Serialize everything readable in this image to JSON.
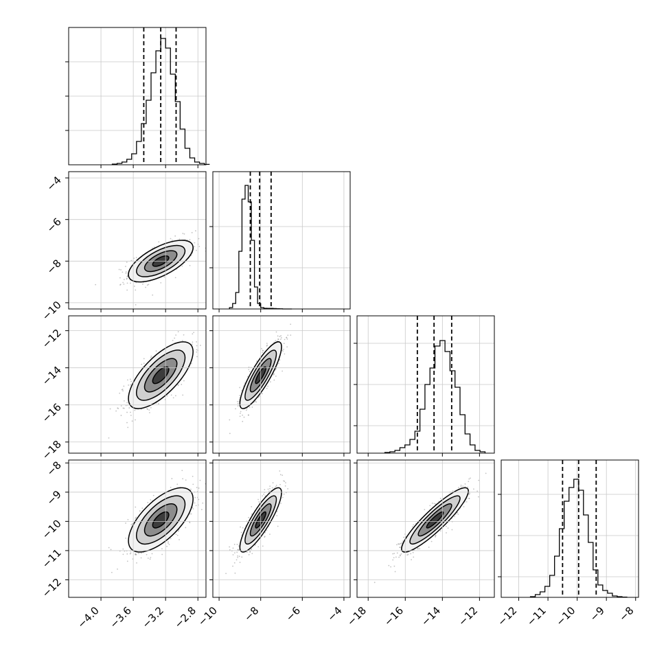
{
  "chart_data": {
    "type": "corner",
    "grid": true,
    "quantiles_shown": [
      0.16,
      0.5,
      0.84
    ],
    "parameters": [
      {
        "range": [
          -4.4,
          -2.7
        ],
        "ticks": [
          -4.0,
          -3.6,
          -3.2,
          -2.8
        ],
        "tick_labels": [
          "−4.0",
          "−3.6",
          "−3.2",
          "−2.8"
        ],
        "hist_y_ticks": [
          0.25,
          0.5,
          0.75
        ],
        "quantiles": [
          -3.47,
          -3.26,
          -3.07
        ],
        "histogram": [
          0.005,
          0.01,
          0.02,
          0.04,
          0.08,
          0.17,
          0.3,
          0.47,
          0.67,
          0.83,
          0.92,
          0.85,
          0.66,
          0.46,
          0.26,
          0.12,
          0.05,
          0.02,
          0.01,
          0.003
        ],
        "center": -3.26,
        "sigma": 0.2
      },
      {
        "range": [
          -10.3,
          -3.7
        ],
        "ticks": [
          -10,
          -8,
          -6,
          -4
        ],
        "tick_labels": [
          "−10",
          "−8",
          "−6",
          "−4"
        ],
        "hist_y_ticks": [
          0.3,
          0.6
        ],
        "quantiles": [
          -8.5,
          -8.05,
          -7.5
        ],
        "histogram": [
          0.01,
          0.04,
          0.12,
          0.42,
          0.8,
          0.9,
          0.78,
          0.5,
          0.16,
          0.04,
          0.01,
          0.005,
          0.004,
          0.004,
          0.003,
          0.002,
          0.001,
          0,
          0,
          0
        ],
        "center": -8.0,
        "sigma": 0.5
      },
      {
        "range": [
          -18.6,
          -11.2
        ],
        "ticks": [
          -18,
          -16,
          -14,
          -12
        ],
        "tick_labels": [
          "−18",
          "−16",
          "−14",
          "−12"
        ],
        "hist_y_ticks": [
          0.2,
          0.5,
          0.8
        ],
        "quantiles": [
          -15.35,
          -14.45,
          -13.5
        ],
        "histogram": [
          0.005,
          0.01,
          0.02,
          0.04,
          0.06,
          0.1,
          0.16,
          0.32,
          0.5,
          0.62,
          0.78,
          0.82,
          0.74,
          0.6,
          0.48,
          0.28,
          0.14,
          0.06,
          0.02,
          0.01
        ],
        "center": -14.4,
        "sigma": 0.9
      },
      {
        "range": [
          -12.6,
          -7.9
        ],
        "ticks": [
          -12,
          -11,
          -10,
          -9,
          -8
        ],
        "tick_labels": [
          "−12",
          "−11",
          "−10",
          "−9",
          "−8"
        ],
        "hist_y_ticks": [
          0.15,
          0.45,
          0.75
        ],
        "quantiles": [
          -10.5,
          -9.95,
          -9.35
        ],
        "histogram": [
          0.005,
          0.02,
          0.04,
          0.08,
          0.16,
          0.3,
          0.5,
          0.7,
          0.8,
          0.86,
          0.78,
          0.6,
          0.4,
          0.2,
          0.09,
          0.05,
          0.03,
          0.01,
          0.005,
          0.002
        ],
        "center": -9.95,
        "sigma": 0.55
      }
    ],
    "correlations": [
      [
        1.0,
        0.65,
        0.7,
        0.65
      ],
      [
        0.65,
        1.0,
        0.85,
        0.85
      ],
      [
        0.7,
        0.85,
        1.0,
        0.9
      ],
      [
        0.65,
        0.85,
        0.9,
        1.0
      ]
    ],
    "row_tick_values": [
      null,
      [
        -10,
        -8,
        -6,
        -4
      ],
      [
        -18,
        -16,
        -14,
        -12
      ],
      [
        -12,
        -11,
        -10,
        -9,
        -8
      ]
    ],
    "row_tick_labels": [
      null,
      [
        "−10",
        "−8",
        "−6",
        "−4"
      ],
      [
        "−18",
        "−16",
        "−14",
        "−12"
      ],
      [
        "−12",
        "−11",
        "−10",
        "−9",
        "−8"
      ]
    ]
  }
}
